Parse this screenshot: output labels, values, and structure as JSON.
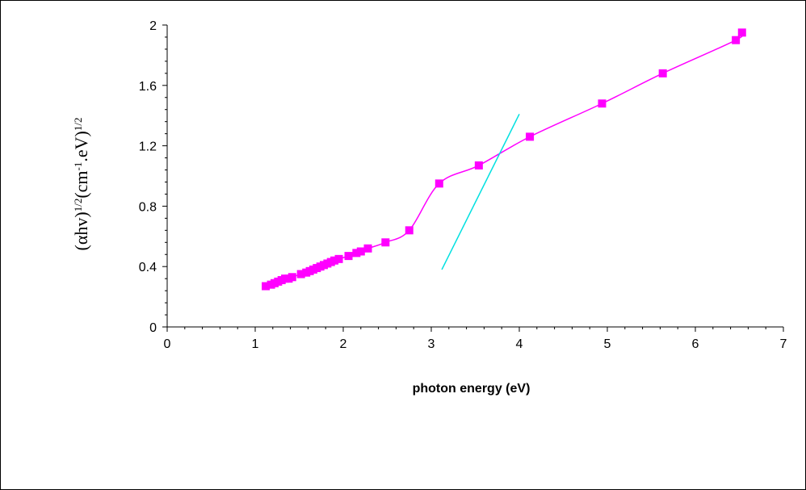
{
  "chart_data": {
    "type": "scatter",
    "xlabel": "photon energy (eV)",
    "ylabel": {
      "parts": [
        {
          "text": "(αhv)",
          "sup": false
        },
        {
          "text": "1/2",
          "sup": true
        },
        {
          "text": "(cm",
          "sup": false
        },
        {
          "text": "-1",
          "sup": true
        },
        {
          "text": ".eV)",
          "sup": false
        },
        {
          "text": "1/2",
          "sup": true
        }
      ]
    },
    "xlim": [
      0,
      7
    ],
    "ylim": [
      0,
      2
    ],
    "x_ticks": [
      0,
      1,
      2,
      3,
      4,
      5,
      6,
      7
    ],
    "y_ticks": [
      0,
      0.4,
      0.8,
      1.2,
      1.6,
      2
    ],
    "x_tick_labels": [
      "0",
      "1",
      "2",
      "3",
      "4",
      "5",
      "6",
      "7"
    ],
    "y_tick_labels": [
      "0",
      "0.4",
      "0.8",
      "1.2",
      "1.6",
      "2"
    ],
    "grid": false,
    "legend": "none",
    "series": [
      {
        "marker": "square",
        "color": "#ff00ff",
        "smooth_line": true,
        "points": [
          [
            1.12,
            0.27
          ],
          [
            1.18,
            0.28
          ],
          [
            1.22,
            0.29
          ],
          [
            1.26,
            0.3
          ],
          [
            1.3,
            0.31
          ],
          [
            1.34,
            0.32
          ],
          [
            1.38,
            0.32
          ],
          [
            1.42,
            0.33
          ],
          [
            1.52,
            0.35
          ],
          [
            1.58,
            0.36
          ],
          [
            1.62,
            0.37
          ],
          [
            1.66,
            0.38
          ],
          [
            1.7,
            0.39
          ],
          [
            1.74,
            0.4
          ],
          [
            1.78,
            0.41
          ],
          [
            1.82,
            0.42
          ],
          [
            1.86,
            0.43
          ],
          [
            1.9,
            0.44
          ],
          [
            1.95,
            0.45
          ],
          [
            2.06,
            0.47
          ],
          [
            2.15,
            0.49
          ],
          [
            2.2,
            0.5
          ],
          [
            2.28,
            0.52
          ],
          [
            2.48,
            0.56
          ],
          [
            2.75,
            0.64
          ],
          [
            3.09,
            0.95
          ],
          [
            3.54,
            1.07
          ],
          [
            4.12,
            1.26
          ],
          [
            4.94,
            1.48
          ],
          [
            5.63,
            1.68
          ],
          [
            6.46,
            1.9
          ],
          [
            6.53,
            1.95
          ]
        ]
      },
      {
        "marker": "none",
        "color": "#00e0e0",
        "smooth_line": false,
        "points": [
          [
            3.12,
            0.38
          ],
          [
            4.0,
            1.41
          ]
        ]
      }
    ]
  }
}
